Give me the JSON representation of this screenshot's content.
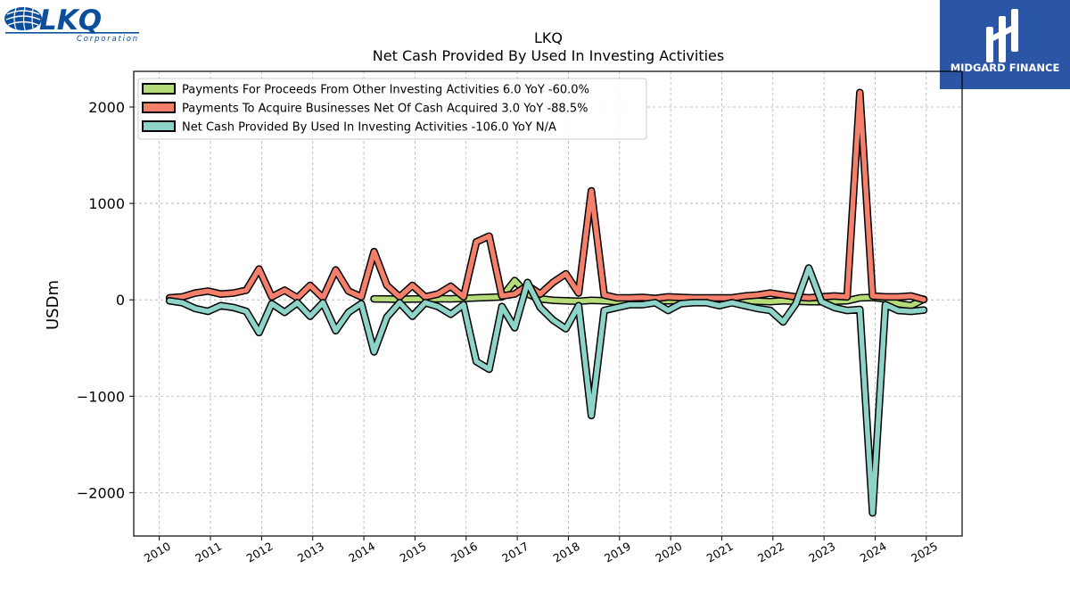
{
  "brand_left": {
    "name": "LKQ",
    "sub": "Corporation"
  },
  "brand_right": {
    "name": "MIDGARD FINANCE"
  },
  "chart_data": {
    "type": "line",
    "title": "LKQ",
    "subtitle": "Net Cash Provided By Used In Investing Activities",
    "ylabel": "USDm",
    "xlabel": "",
    "xlim": [
      2009.5,
      2025.7
    ],
    "ylim": [
      -2450,
      2370
    ],
    "yticks": [
      -2000,
      -1000,
      0,
      1000,
      2000
    ],
    "ytick_labels": [
      "−2000",
      "−1000",
      "0",
      "1000",
      "2000"
    ],
    "xticks": [
      2010,
      2011,
      2012,
      2013,
      2014,
      2015,
      2016,
      2017,
      2018,
      2019,
      2020,
      2021,
      2022,
      2023,
      2024,
      2025
    ],
    "xtick_labels": [
      "2010",
      "2011",
      "2012",
      "2013",
      "2014",
      "2015",
      "2016",
      "2017",
      "2018",
      "2019",
      "2020",
      "2021",
      "2022",
      "2023",
      "2024",
      "2025"
    ],
    "grid": true,
    "legend_position": "top-left",
    "series": [
      {
        "name": "Payments For Proceeds From Other Investing Activities  6.0 YoY -60.0%",
        "color": "#b5dc78",
        "x": [
          2014.2,
          2014.45,
          2014.7,
          2014.95,
          2015.2,
          2015.45,
          2015.7,
          2015.95,
          2016.2,
          2016.45,
          2016.7,
          2016.95,
          2017.2,
          2017.45,
          2017.7,
          2017.95,
          2018.2,
          2018.45,
          2018.7,
          2018.95,
          2019.2,
          2019.45,
          2019.7,
          2019.95,
          2020.2,
          2020.45,
          2020.7,
          2020.95,
          2021.2,
          2021.45,
          2021.7,
          2021.95,
          2022.2,
          2022.45,
          2022.7,
          2022.95,
          2023.2,
          2023.45,
          2023.7,
          2023.95,
          2024.2,
          2024.45,
          2024.7,
          2024.95
        ],
        "y": [
          10,
          8,
          5,
          8,
          10,
          12,
          10,
          15,
          20,
          25,
          30,
          200,
          60,
          10,
          -5,
          -10,
          -15,
          -5,
          -10,
          -20,
          -15,
          -10,
          -5,
          -10,
          -5,
          -5,
          -5,
          -5,
          -5,
          -10,
          -15,
          -20,
          -10,
          -15,
          -20,
          -20,
          -15,
          -10,
          20,
          25,
          10,
          -40,
          -60,
          6
        ]
      },
      {
        "name": "Payments To Acquire Businesses Net Of Cash Acquired  3.0 YoY -88.5%",
        "color": "#f47f6b",
        "x": [
          2010.2,
          2010.45,
          2010.7,
          2010.95,
          2011.2,
          2011.45,
          2011.7,
          2011.95,
          2012.2,
          2012.45,
          2012.7,
          2012.95,
          2013.2,
          2013.45,
          2013.7,
          2013.95,
          2014.2,
          2014.45,
          2014.7,
          2014.95,
          2015.2,
          2015.45,
          2015.7,
          2015.95,
          2016.2,
          2016.45,
          2016.7,
          2016.95,
          2017.2,
          2017.45,
          2017.7,
          2017.95,
          2018.2,
          2018.45,
          2018.7,
          2018.95,
          2019.2,
          2019.45,
          2019.7,
          2019.95,
          2020.2,
          2020.45,
          2020.7,
          2020.95,
          2021.2,
          2021.45,
          2021.7,
          2021.95,
          2022.2,
          2022.45,
          2022.7,
          2022.95,
          2023.2,
          2023.45,
          2023.7,
          2023.95,
          2024.2,
          2024.45,
          2024.7,
          2024.95
        ],
        "y": [
          20,
          30,
          70,
          90,
          60,
          70,
          100,
          320,
          30,
          100,
          20,
          150,
          20,
          310,
          90,
          30,
          500,
          150,
          30,
          150,
          30,
          60,
          140,
          30,
          600,
          660,
          40,
          60,
          150,
          60,
          180,
          270,
          70,
          1130,
          50,
          20,
          20,
          25,
          15,
          30,
          25,
          20,
          20,
          20,
          20,
          40,
          50,
          70,
          50,
          30,
          20,
          30,
          40,
          30,
          2150,
          40,
          30,
          30,
          40,
          3
        ]
      },
      {
        "name": "Net Cash Provided By Used In Investing Activities  -106.0 YoY N/A",
        "color": "#8dd3c7",
        "x": [
          2010.2,
          2010.45,
          2010.7,
          2010.95,
          2011.2,
          2011.45,
          2011.7,
          2011.95,
          2012.2,
          2012.45,
          2012.7,
          2012.95,
          2013.2,
          2013.45,
          2013.7,
          2013.95,
          2014.2,
          2014.45,
          2014.7,
          2014.95,
          2015.2,
          2015.45,
          2015.7,
          2015.95,
          2016.2,
          2016.45,
          2016.7,
          2016.95,
          2017.2,
          2017.45,
          2017.7,
          2017.95,
          2018.2,
          2018.45,
          2018.7,
          2018.95,
          2019.2,
          2019.45,
          2019.7,
          2019.95,
          2020.2,
          2020.45,
          2020.7,
          2020.95,
          2021.2,
          2021.45,
          2021.7,
          2021.95,
          2022.2,
          2022.45,
          2022.7,
          2022.95,
          2023.2,
          2023.45,
          2023.7,
          2023.95,
          2024.2,
          2024.45,
          2024.7,
          2024.95
        ],
        "y": [
          -10,
          -30,
          -90,
          -120,
          -60,
          -80,
          -120,
          -340,
          -40,
          -130,
          -30,
          -170,
          -30,
          -320,
          -130,
          -40,
          -540,
          -180,
          -30,
          -170,
          -30,
          -70,
          -150,
          -50,
          -640,
          -720,
          -70,
          -290,
          180,
          -80,
          -210,
          -300,
          -60,
          -1200,
          -110,
          -80,
          -50,
          -50,
          -30,
          -110,
          -40,
          -30,
          -30,
          -60,
          -30,
          -60,
          -90,
          -110,
          -230,
          -40,
          330,
          -20,
          -80,
          -110,
          -100,
          -2210,
          -50,
          -110,
          -120,
          -106
        ]
      }
    ]
  }
}
